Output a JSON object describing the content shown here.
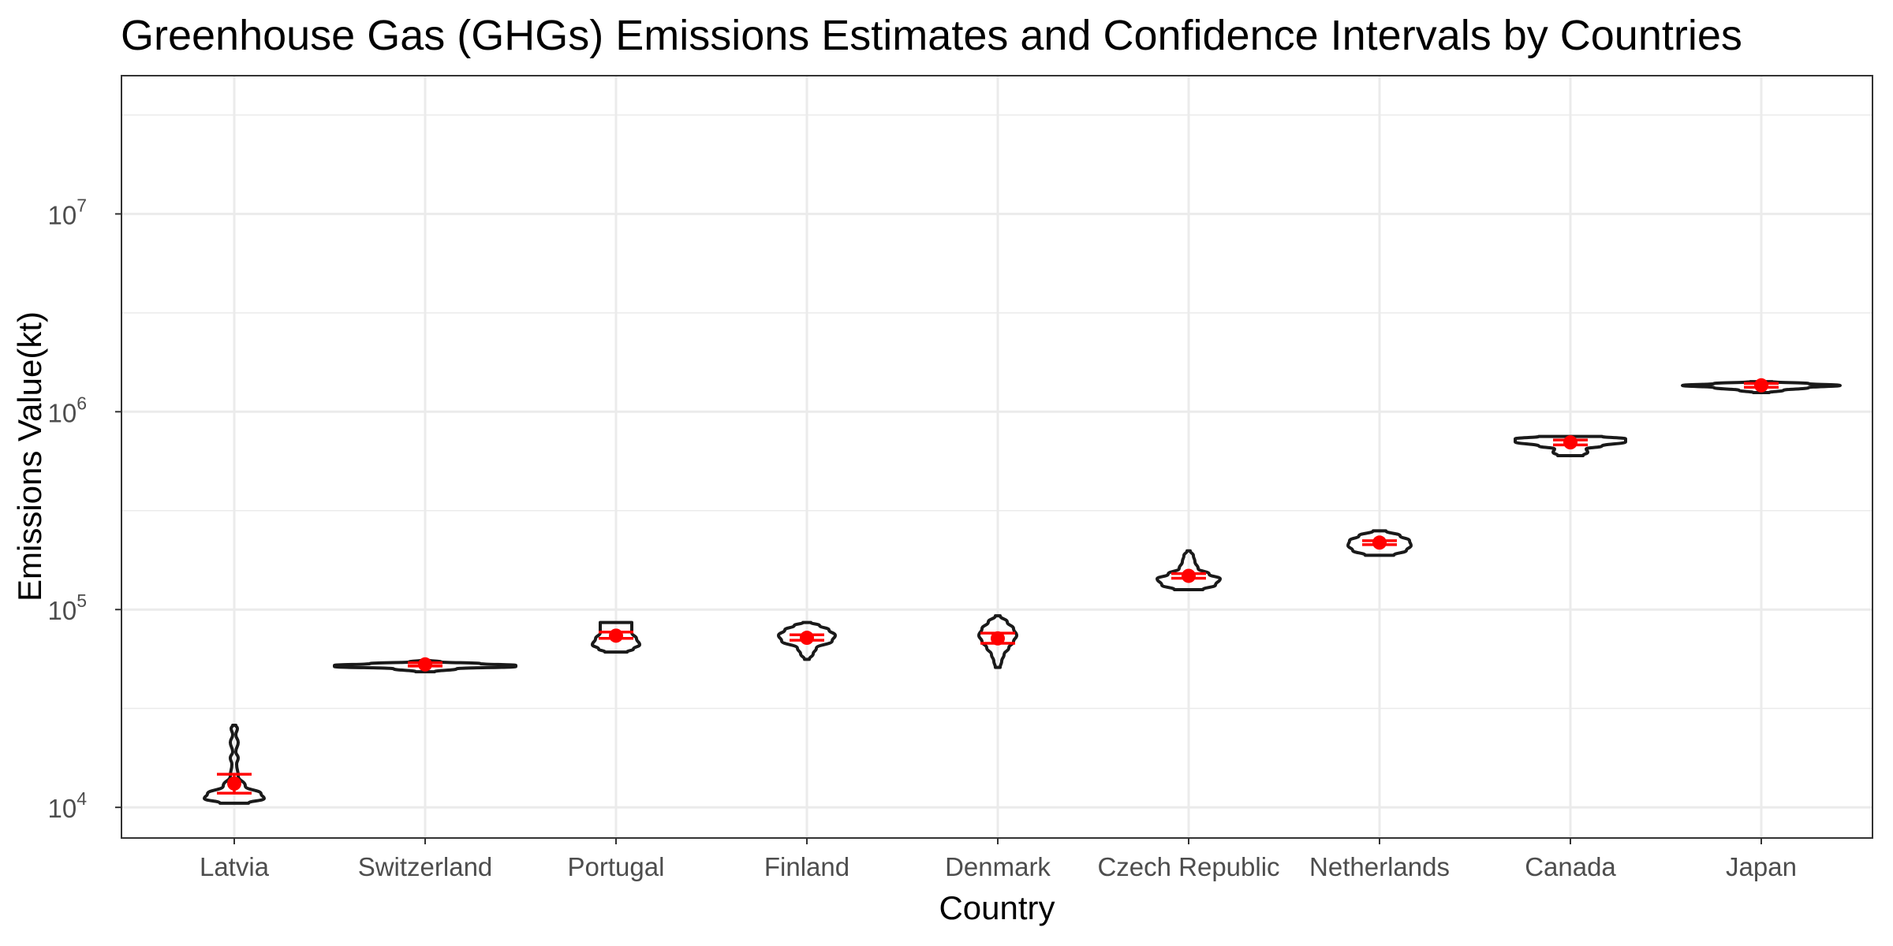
{
  "chart_data": {
    "type": "violin",
    "title": "Greenhouse Gas (GHGs) Emissions Estimates and Confidence Intervals by Countries",
    "xlabel": "Country",
    "ylabel": "Emissions Value(kt)",
    "y_scale": "log10",
    "ylim": [
      7000,
      50000000
    ],
    "y_ticks": [
      {
        "value": 10000,
        "base": "10",
        "exp": "4"
      },
      {
        "value": 100000,
        "base": "10",
        "exp": "5"
      },
      {
        "value": 1000000,
        "base": "10",
        "exp": "6"
      },
      {
        "value": 10000000,
        "base": "10",
        "exp": "7"
      }
    ],
    "grid": true,
    "categories": [
      "Latvia",
      "Switzerland",
      "Portugal",
      "Finland",
      "Denmark",
      "Czech Republic",
      "Netherlands",
      "Canada",
      "Japan"
    ],
    "series": [
      {
        "points": [
          {
            "country": "Latvia",
            "estimate": 13200,
            "ci_low": 11800,
            "ci_high": 14700,
            "dist_min": 10500,
            "dist_max": 26000
          },
          {
            "country": "Switzerland",
            "estimate": 52800,
            "ci_low": 51800,
            "ci_high": 53800,
            "dist_min": 48500,
            "dist_max": 55500
          },
          {
            "country": "Portugal",
            "estimate": 73800,
            "ci_low": 71500,
            "ci_high": 77000,
            "dist_min": 61000,
            "dist_max": 86000
          },
          {
            "country": "Finland",
            "estimate": 72000,
            "ci_low": 70000,
            "ci_high": 74500,
            "dist_min": 56000,
            "dist_max": 86000
          },
          {
            "country": "Denmark",
            "estimate": 71500,
            "ci_low": 67500,
            "ci_high": 76000,
            "dist_min": 51000,
            "dist_max": 93000
          },
          {
            "country": "Czech Republic",
            "estimate": 148000,
            "ci_low": 144000,
            "ci_high": 152000,
            "dist_min": 126000,
            "dist_max": 198000
          },
          {
            "country": "Netherlands",
            "estimate": 218000,
            "ci_low": 213000,
            "ci_high": 223000,
            "dist_min": 188000,
            "dist_max": 250000
          },
          {
            "country": "Canada",
            "estimate": 700000,
            "ci_low": 680000,
            "ci_high": 720000,
            "dist_min": 600000,
            "dist_max": 750000
          },
          {
            "country": "Japan",
            "estimate": 1360000,
            "ci_low": 1330000,
            "ci_high": 1390000,
            "dist_min": 1250000,
            "dist_max": 1420000
          }
        ]
      }
    ],
    "colors": {
      "violin_outline": "#1a1a1a",
      "estimate": "#ff0000",
      "ci": "#ff0000",
      "grid": "#ebebeb",
      "panel_border": "#333333"
    }
  }
}
